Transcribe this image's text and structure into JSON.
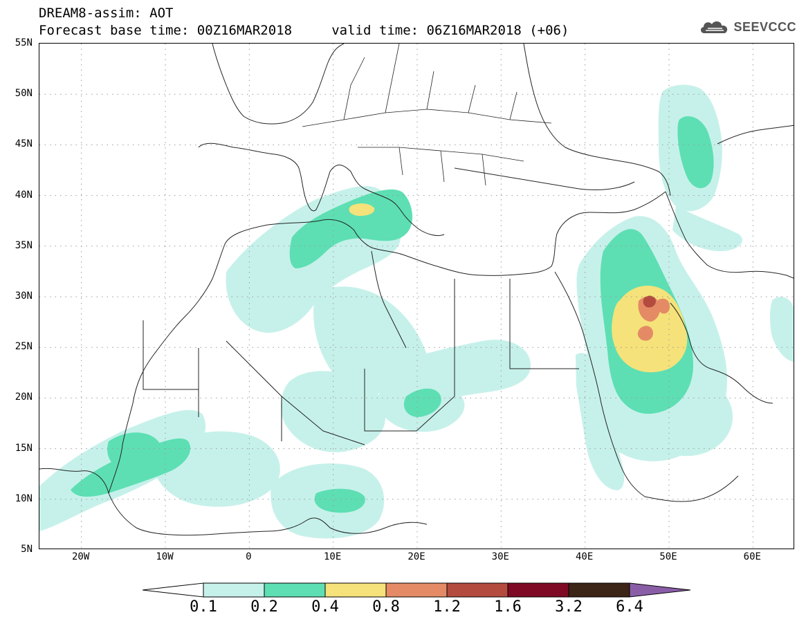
{
  "header": {
    "title_line1": "DREAM8-assim: AOT",
    "title_line2": "Forecast base time: 00Z16MAR2018     valid time: 06Z16MAR2018 (+06)",
    "logo_text": "SEEVCCC"
  },
  "map": {
    "lon_range": [
      -25,
      65
    ],
    "lat_range": [
      5,
      55
    ],
    "lat_labels": [
      "55N",
      "50N",
      "45N",
      "40N",
      "35N",
      "30N",
      "25N",
      "20N",
      "15N",
      "10N",
      "5N"
    ],
    "lon_labels": [
      "20W",
      "10W",
      "0",
      "10E",
      "20E",
      "30E",
      "40E",
      "50E",
      "60E"
    ],
    "graticule": "dotted"
  },
  "legend": {
    "levels": [
      "0.1",
      "0.2",
      "0.4",
      "0.8",
      "1.2",
      "1.6",
      "3.2",
      "6.4"
    ],
    "colors": {
      "lt01": "#ffffff",
      "b01_02": "#c6f1ea",
      "b02_04": "#5ddfb3",
      "b04_08": "#f5e27a",
      "b08_12": "#e48b66",
      "b12_16": "#b34b3e",
      "b16_32": "#7e0a25",
      "b32_64": "#3c2416",
      "gt64": "#8a5ea7"
    }
  }
}
